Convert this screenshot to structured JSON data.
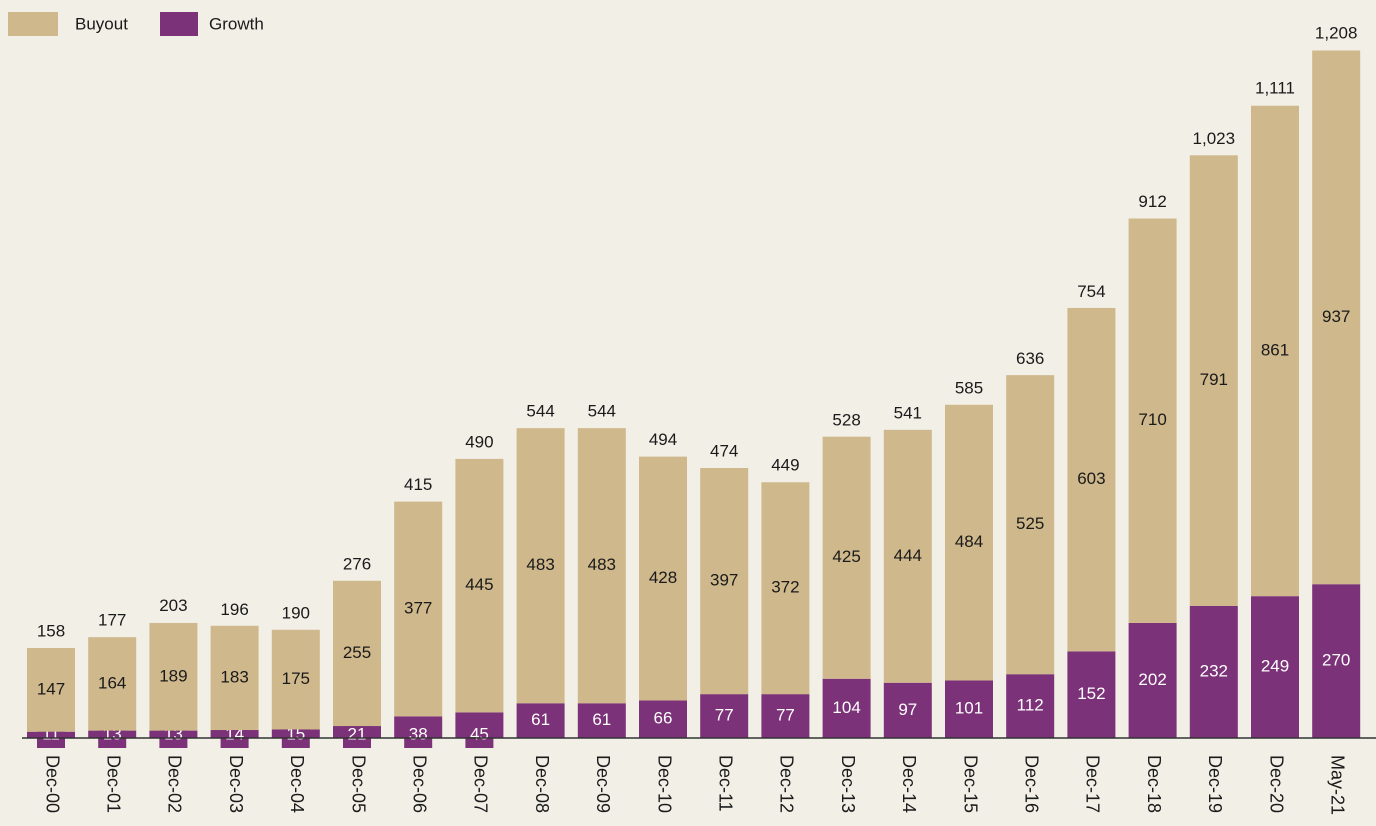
{
  "chart_data": {
    "type": "stacked-bar",
    "categories": [
      "Dec-00",
      "Dec-01",
      "Dec-02",
      "Dec-03",
      "Dec-04",
      "Dec-05",
      "Dec-06",
      "Dec-07",
      "Dec-08",
      "Dec-09",
      "Dec-10",
      "Dec-11",
      "Dec-12",
      "Dec-13",
      "Dec-14",
      "Dec-15",
      "Dec-16",
      "Dec-17",
      "Dec-18",
      "Dec-19",
      "Dec-20",
      "May-21"
    ],
    "series": [
      {
        "name": "Growth",
        "color": "#7b3278",
        "values": [
          11,
          13,
          13,
          14,
          15,
          21,
          38,
          45,
          61,
          61,
          66,
          77,
          77,
          104,
          97,
          101,
          112,
          152,
          202,
          232,
          249,
          270
        ]
      },
      {
        "name": "Buyout",
        "color": "#cfb88b",
        "values": [
          147,
          164,
          189,
          183,
          175,
          255,
          377,
          445,
          483,
          483,
          428,
          397,
          372,
          425,
          444,
          484,
          525,
          603,
          710,
          791,
          861,
          937
        ]
      }
    ],
    "totals": [
      158,
      177,
      203,
      196,
      190,
      276,
      415,
      490,
      544,
      544,
      494,
      474,
      449,
      528,
      541,
      585,
      636,
      754,
      912,
      1023,
      1111,
      1208
    ],
    "total_value_labels": [
      "158",
      "177",
      "203",
      "196",
      "190",
      "276",
      "415",
      "490",
      "544",
      "544",
      "494",
      "474",
      "449",
      "528",
      "541",
      "585",
      "636",
      "754",
      "912",
      "1,023",
      "1,111",
      "1,208"
    ],
    "ylim": [
      0,
      1250
    ],
    "legend": "top-left"
  }
}
